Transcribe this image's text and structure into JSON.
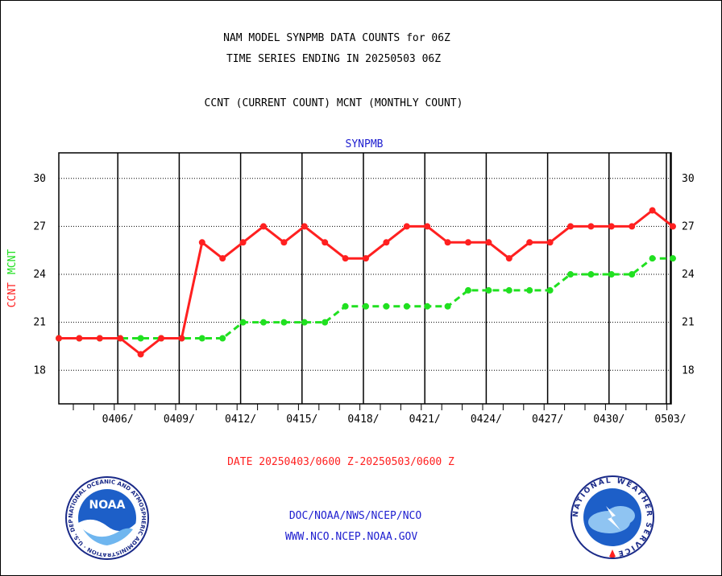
{
  "header": {
    "line1": "NAM MODEL SYNPMB DATA COUNTS for 06Z",
    "line2": "TIME SERIES ENDING IN 20250503 06Z",
    "line3": "CCNT (CURRENT COUNT) MCNT (MONTHLY COUNT)"
  },
  "footer": {
    "date_range": "DATE 20250403/0600 Z-20250503/0600 Z",
    "org_path": "DOC/NOAA/NWS/NCEP/NCO",
    "url": "WWW.NCO.NCEP.NOAA.GOV"
  },
  "logos": {
    "left": {
      "center_text": "NOAA",
      "ring_text": "NATIONAL OCEANIC AND ATMOSPHERIC ADMINISTRATION · U.S. DEPARTMENT OF COMMERCE",
      "icon": "noaa-logo"
    },
    "right": {
      "ring_text": "NATIONAL WEATHER SERVICE",
      "icon": "nws-logo"
    }
  },
  "colors": {
    "ccnt": "#ff2020",
    "mcnt": "#20e020",
    "title_blue": "#2020d0",
    "date_red": "#ff2020"
  },
  "chart_data": {
    "type": "line",
    "title": "SYNPMB",
    "ylabel_left": [
      {
        "text": "CCNT",
        "color": "#ff2020"
      },
      {
        "text": "MCNT",
        "color": "#20e020"
      }
    ],
    "x_tick_labels": [
      "0406/",
      "0409/",
      "0412/",
      "0415/",
      "0418/",
      "0421/",
      "0424/",
      "0427/",
      "0430/",
      "0503/"
    ],
    "y_ticks": [
      18,
      21,
      24,
      27,
      30
    ],
    "ylim": [
      15.9,
      31.6
    ],
    "grid": true,
    "series": [
      {
        "name": "CCNT",
        "style": "solid",
        "color": "#ff2020",
        "x": [
          "04/03",
          "04/04",
          "04/05",
          "04/06",
          "04/07",
          "04/08",
          "04/09",
          "04/10",
          "04/11",
          "04/12",
          "04/13",
          "04/14",
          "04/15",
          "04/16",
          "04/17",
          "04/18",
          "04/19",
          "04/20",
          "04/21",
          "04/22",
          "04/23",
          "04/24",
          "04/25",
          "04/26",
          "04/27",
          "04/28",
          "04/29",
          "04/30",
          "05/01",
          "05/02",
          "05/03"
        ],
        "values": [
          20,
          20,
          20,
          20,
          19,
          20,
          20,
          26,
          25,
          26,
          27,
          26,
          27,
          26,
          25,
          25,
          26,
          27,
          27,
          26,
          26,
          26,
          25,
          26,
          26,
          27,
          27,
          27,
          27,
          28,
          27
        ]
      },
      {
        "name": "MCNT",
        "style": "dashed",
        "color": "#20e020",
        "x": [
          "04/03",
          "04/04",
          "04/05",
          "04/06",
          "04/07",
          "04/08",
          "04/09",
          "04/10",
          "04/11",
          "04/12",
          "04/13",
          "04/14",
          "04/15",
          "04/16",
          "04/17",
          "04/18",
          "04/19",
          "04/20",
          "04/21",
          "04/22",
          "04/23",
          "04/24",
          "04/25",
          "04/26",
          "04/27",
          "04/28",
          "04/29",
          "04/30",
          "05/01",
          "05/02",
          "05/03"
        ],
        "values": [
          20,
          20,
          20,
          20,
          20,
          20,
          20,
          20,
          20,
          21,
          21,
          21,
          21,
          21,
          22,
          22,
          22,
          22,
          22,
          22,
          23,
          23,
          23,
          23,
          23,
          24,
          24,
          24,
          24,
          25,
          25
        ]
      }
    ]
  }
}
